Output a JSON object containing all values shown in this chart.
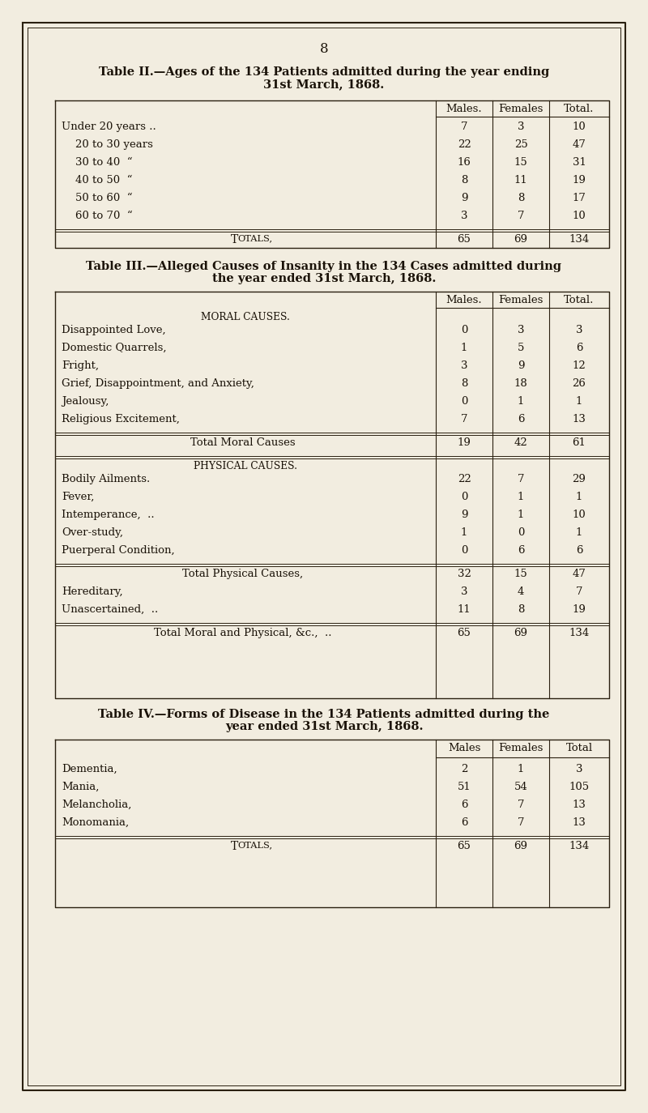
{
  "bg_color": "#f2ede0",
  "text_color": "#1a1208",
  "line_color": "#2a2010",
  "page_num": "8",
  "table2_title_line1": "Table II.—Ages of the 134 Patients admitted during the year ending",
  "table2_title_line2": "31st March, 1868.",
  "table3_title_line1": "Table III.—Alleged Causes of Insanity in the 134 Cases admitted during",
  "table3_title_line2": "the year ended 31st March, 1868.",
  "table4_title_line1": "Table IV.—Forms of Disease in the 134 Patients admitted during the",
  "table4_title_line2": "year ended 31st March, 1868.",
  "col_headers_period": [
    "Males.",
    "Females",
    "Total."
  ],
  "col_headers_no_period": [
    "Males",
    "Females",
    "Total"
  ],
  "t2_rows": [
    [
      "Under 20 years ..",
      "7",
      "3",
      "10"
    ],
    [
      "    20 to 30 years",
      "22",
      "25",
      "47"
    ],
    [
      "    30 to 40  “",
      "16",
      "15",
      "31"
    ],
    [
      "    40 to 50  “",
      "8",
      "11",
      "19"
    ],
    [
      "    50 to 60  “",
      "9",
      "8",
      "17"
    ],
    [
      "    60 to 70  “",
      "3",
      "7",
      "10"
    ]
  ],
  "t2_total": [
    "65",
    "69",
    "134"
  ],
  "t3_moral_rows": [
    [
      "Disappointed Love,",
      "0",
      "3",
      "3"
    ],
    [
      "Domestic Quarrels,",
      "1",
      "5",
      "6"
    ],
    [
      "Fright,",
      "3",
      "9",
      "12"
    ],
    [
      "Grief, Disappointment, and Anxiety,",
      "8",
      "18",
      "26"
    ],
    [
      "Jealousy,",
      "0",
      "1",
      "1"
    ],
    [
      "Religious Excitement,",
      "7",
      "6",
      "13"
    ]
  ],
  "t3_moral_total": [
    "19",
    "42",
    "61"
  ],
  "t3_phys_rows": [
    [
      "Bodily Ailments.",
      "22",
      "7",
      "29"
    ],
    [
      "Fever,",
      "0",
      "1",
      "1"
    ],
    [
      "Intemperance,  ..",
      "9",
      "1",
      "10"
    ],
    [
      "Over-study,",
      "1",
      "0",
      "1"
    ],
    [
      "Puerperal Condition,",
      "0",
      "6",
      "6"
    ]
  ],
  "t3_phys_total": [
    "32",
    "15",
    "47"
  ],
  "t3_hereditary": [
    "3",
    "4",
    "7"
  ],
  "t3_unascertained": [
    "11",
    "8",
    "19"
  ],
  "t3_grand_total": [
    "65",
    "69",
    "134"
  ],
  "t4_rows": [
    [
      "Dementia,",
      "2",
      "1",
      "3"
    ],
    [
      "Mania,",
      "51",
      "54",
      "105"
    ],
    [
      "Melancholia,",
      "6",
      "7",
      "13"
    ],
    [
      "Monomania,",
      "6",
      "7",
      "13"
    ]
  ],
  "t4_total": [
    "65",
    "69",
    "134"
  ]
}
